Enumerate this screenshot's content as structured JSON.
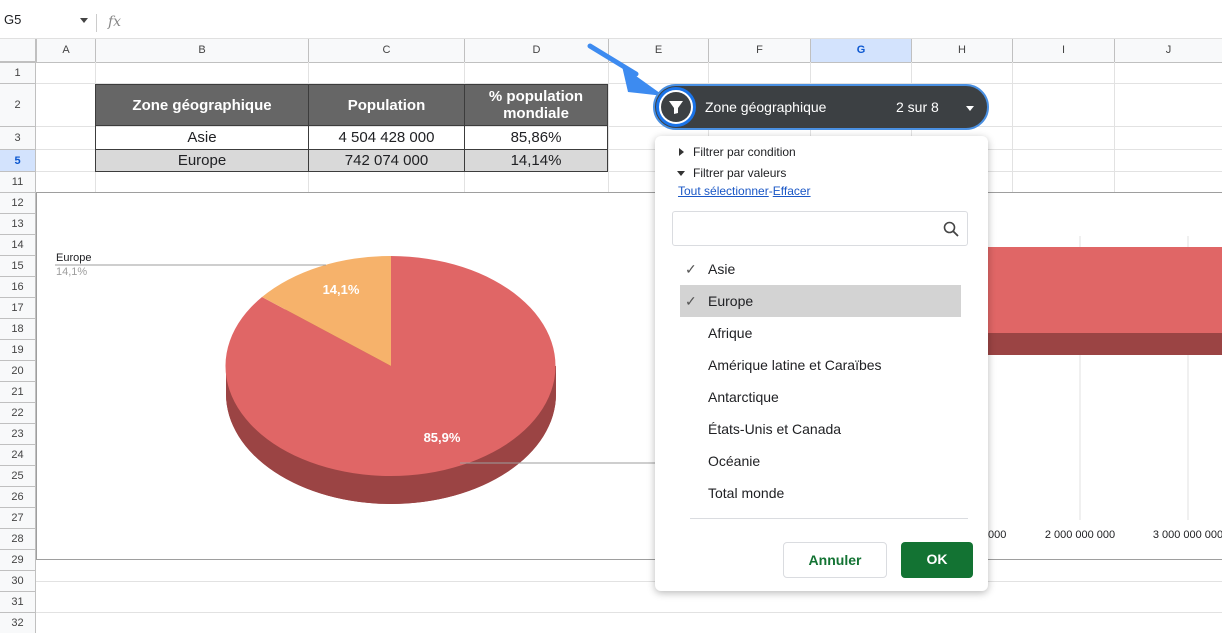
{
  "formula_bar": {
    "cell_ref": "G5",
    "fx_label": "fx"
  },
  "columns": [
    "A",
    "B",
    "C",
    "D",
    "E",
    "F",
    "G",
    "H",
    "I",
    "J"
  ],
  "rows": [
    "1",
    "2",
    "3",
    "5",
    "11",
    "12",
    "13",
    "14",
    "15",
    "16",
    "17",
    "18",
    "19",
    "20",
    "21",
    "22",
    "23",
    "24",
    "25",
    "26",
    "27",
    "28",
    "29",
    "30",
    "31",
    "32"
  ],
  "table": {
    "headers": [
      "Zone géographique",
      "Population",
      "% population mondiale"
    ],
    "rows": [
      {
        "zone": "Asie",
        "population": "4 504 428 000",
        "pct": "85,86%"
      },
      {
        "zone": "Europe",
        "population": "742 074 000",
        "pct": "14,14%"
      }
    ]
  },
  "chart_data": [
    {
      "type": "pie",
      "categories": [
        "Asie",
        "Europe"
      ],
      "values": [
        85.9,
        14.1
      ],
      "data_labels": [
        "85,9%",
        "14,1%"
      ],
      "callout": {
        "label": "Europe",
        "value": "14,1%"
      },
      "colors": [
        "#e06666",
        "#f6b26b"
      ]
    },
    {
      "type": "bar",
      "x_ticks": [
        "000",
        "2 000 000 000",
        "3 000 000 000"
      ],
      "colors": [
        "#e06666"
      ]
    }
  ],
  "filter": {
    "chip_label": "Zone géographique",
    "chip_count": "2 sur 8",
    "by_condition": "Filtrer par condition",
    "by_values": "Filtrer par valeurs",
    "select_all": "Tout sélectionner",
    "separator": "-",
    "clear": "Effacer",
    "search_placeholder": "",
    "options": [
      {
        "label": "Asie",
        "checked": true
      },
      {
        "label": "Europe",
        "checked": true
      },
      {
        "label": "Afrique",
        "checked": false
      },
      {
        "label": "Amérique latine et Caraïbes",
        "checked": false
      },
      {
        "label": "Antarctique",
        "checked": false
      },
      {
        "label": "États-Unis et Canada",
        "checked": false
      },
      {
        "label": "Océanie",
        "checked": false
      },
      {
        "label": "Total monde",
        "checked": false
      }
    ],
    "cancel_label": "Annuler",
    "ok_label": "OK"
  },
  "colors": {
    "accent": "#1a73e8",
    "ok_button": "#137333",
    "chip": "#3c4043"
  }
}
